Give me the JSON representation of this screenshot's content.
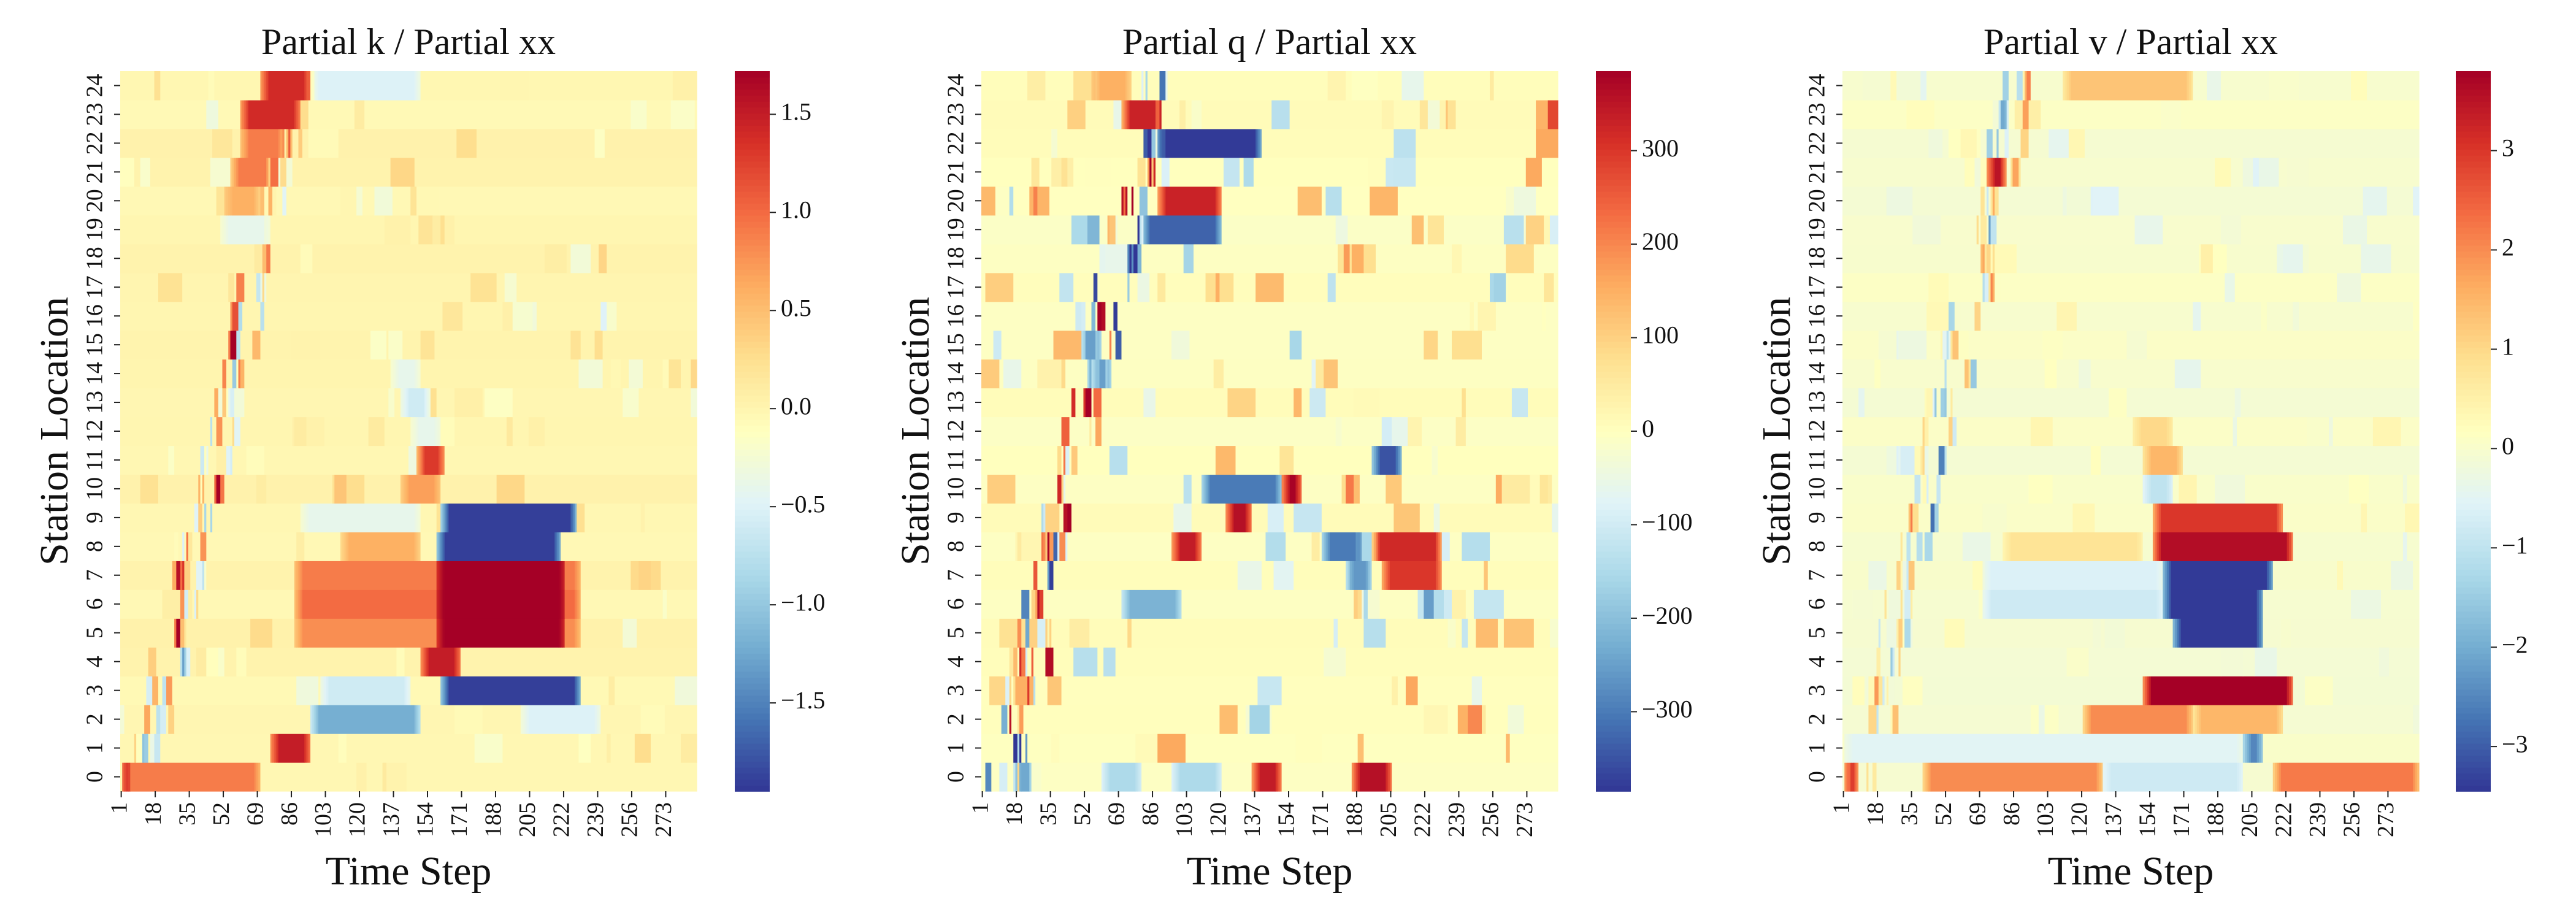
{
  "chart_data": [
    {
      "type": "heatmap",
      "title": "Partial k / Partial xx",
      "xlabel": "Time Step",
      "ylabel": "Station Location",
      "x_tick_labels": [
        "1",
        "18",
        "35",
        "52",
        "69",
        "86",
        "103",
        "120",
        "137",
        "154",
        "171",
        "188",
        "205",
        "222",
        "239",
        "256",
        "273"
      ],
      "y_tick_labels": [
        "0",
        "1",
        "2",
        "3",
        "4",
        "5",
        "6",
        "7",
        "8",
        "9",
        "10",
        "11",
        "12",
        "13",
        "14",
        "15",
        "16",
        "17",
        "18",
        "19",
        "20",
        "21",
        "22",
        "23",
        "24"
      ],
      "colorbar_ticks": [
        "-1.5",
        "-1.0",
        "-0.5",
        "0.0",
        "0.5",
        "1.0",
        "1.5"
      ],
      "colorbar_range": [
        -1.95,
        1.72
      ],
      "colormap": "RdYlBu_r",
      "n_time_steps": 288,
      "n_stations": 25,
      "features": [
        {
          "station": 6,
          "t0": 87,
          "t1": 230,
          "value": 1.0
        },
        {
          "station": 5,
          "t0": 87,
          "t1": 230,
          "value": 0.8
        },
        {
          "station": 7,
          "t0": 87,
          "t1": 230,
          "value": 0.9
        },
        {
          "station": 6,
          "t0": 158,
          "t1": 222,
          "value": 1.8
        },
        {
          "station": 5,
          "t0": 158,
          "t1": 222,
          "value": 1.8
        },
        {
          "station": 7,
          "t0": 158,
          "t1": 222,
          "value": 1.8
        },
        {
          "station": 8,
          "t0": 158,
          "t1": 220,
          "value": -1.9
        },
        {
          "station": 9,
          "t0": 160,
          "t1": 228,
          "value": -1.9
        },
        {
          "station": 8,
          "t0": 110,
          "t1": 150,
          "value": 0.6
        },
        {
          "station": 9,
          "t0": 90,
          "t1": 150,
          "value": -0.4
        },
        {
          "station": 3,
          "t0": 160,
          "t1": 230,
          "value": -1.9
        },
        {
          "station": 3,
          "t0": 100,
          "t1": 145,
          "value": -0.6
        },
        {
          "station": 4,
          "t0": 150,
          "t1": 170,
          "value": 1.5
        },
        {
          "station": 1,
          "t0": 75,
          "t1": 95,
          "value": 1.5
        },
        {
          "station": 2,
          "t0": 95,
          "t1": 150,
          "value": -1.2
        },
        {
          "station": 2,
          "t0": 200,
          "t1": 240,
          "value": -0.5
        },
        {
          "station": 0,
          "t0": 1,
          "t1": 70,
          "value": 0.9
        },
        {
          "station": 0,
          "t0": 1,
          "t1": 5,
          "value": 1.5
        },
        {
          "station": 10,
          "t0": 140,
          "t1": 160,
          "value": 0.7
        },
        {
          "station": 11,
          "t0": 148,
          "t1": 162,
          "value": 1.3
        },
        {
          "station": 12,
          "t0": 145,
          "t1": 160,
          "value": -0.4
        },
        {
          "station": 13,
          "t0": 140,
          "t1": 155,
          "value": -0.6
        },
        {
          "station": 14,
          "t0": 135,
          "t1": 150,
          "value": -0.4
        },
        {
          "station": 24,
          "t0": 70,
          "t1": 95,
          "value": 1.4
        },
        {
          "station": 24,
          "t0": 95,
          "t1": 150,
          "value": -0.5
        },
        {
          "station": 23,
          "t0": 60,
          "t1": 90,
          "value": 1.4
        },
        {
          "station": 22,
          "t0": 60,
          "t1": 82,
          "value": 0.9
        },
        {
          "station": 21,
          "t0": 55,
          "t1": 75,
          "value": 0.9
        },
        {
          "station": 20,
          "t0": 52,
          "t1": 70,
          "value": 0.6
        },
        {
          "station": 19,
          "t0": 50,
          "t1": 75,
          "value": -0.4
        }
      ]
    },
    {
      "type": "heatmap",
      "title": "Partial q / Partial xx",
      "xlabel": "Time Step",
      "ylabel": "Station Location",
      "x_tick_labels": [
        "1",
        "18",
        "35",
        "52",
        "69",
        "86",
        "103",
        "120",
        "137",
        "154",
        "171",
        "188",
        "205",
        "222",
        "239",
        "256",
        "273"
      ],
      "y_tick_labels": [
        "0",
        "1",
        "2",
        "3",
        "4",
        "5",
        "6",
        "7",
        "8",
        "9",
        "10",
        "11",
        "12",
        "13",
        "14",
        "15",
        "16",
        "17",
        "18",
        "19",
        "20",
        "21",
        "22",
        "23",
        "24"
      ],
      "colorbar_ticks": [
        "-300",
        "-200",
        "-100",
        "0",
        "100",
        "200",
        "300"
      ],
      "colorbar_range": [
        -385,
        385
      ],
      "colormap": "RdYlBu_r",
      "n_time_steps": 288,
      "n_stations": 25,
      "features": [
        {
          "station": 22,
          "t0": 88,
          "t1": 140,
          "value": -380
        },
        {
          "station": 20,
          "t0": 88,
          "t1": 120,
          "value": 330
        },
        {
          "station": 19,
          "t0": 80,
          "t1": 120,
          "value": -330
        },
        {
          "station": 10,
          "t0": 110,
          "t1": 150,
          "value": -300
        },
        {
          "station": 10,
          "t0": 150,
          "t1": 160,
          "value": 380
        },
        {
          "station": 9,
          "t0": 122,
          "t1": 135,
          "value": 360
        },
        {
          "station": 8,
          "t0": 95,
          "t1": 110,
          "value": 340
        },
        {
          "station": 8,
          "t0": 170,
          "t1": 190,
          "value": -300
        },
        {
          "station": 8,
          "t0": 195,
          "t1": 230,
          "value": 320
        },
        {
          "station": 7,
          "t0": 200,
          "t1": 230,
          "value": 300
        },
        {
          "station": 7,
          "t0": 182,
          "t1": 195,
          "value": -260
        },
        {
          "station": 11,
          "t0": 195,
          "t1": 210,
          "value": -350
        },
        {
          "station": 6,
          "t0": 70,
          "t1": 100,
          "value": -220
        },
        {
          "station": 0,
          "t0": 135,
          "t1": 150,
          "value": 340
        },
        {
          "station": 0,
          "t0": 185,
          "t1": 205,
          "value": 360
        },
        {
          "station": 0,
          "t0": 60,
          "t1": 80,
          "value": -150
        },
        {
          "station": 0,
          "t0": 95,
          "t1": 120,
          "value": -150
        },
        {
          "station": 23,
          "t0": 70,
          "t1": 90,
          "value": 330
        },
        {
          "station": 24,
          "t0": 55,
          "t1": 75,
          "value": 150
        },
        {
          "station": 14,
          "t0": 55,
          "t1": 65,
          "value": -250
        },
        {
          "station": 15,
          "t0": 50,
          "t1": 60,
          "value": -250
        }
      ]
    },
    {
      "type": "heatmap",
      "title": "Partial v / Partial xx",
      "xlabel": "Time Step",
      "ylabel": "Station Location",
      "x_tick_labels": [
        "1",
        "18",
        "35",
        "52",
        "69",
        "86",
        "103",
        "120",
        "137",
        "154",
        "171",
        "188",
        "205",
        "222",
        "239",
        "256",
        "273"
      ],
      "y_tick_labels": [
        "0",
        "1",
        "2",
        "3",
        "4",
        "5",
        "6",
        "7",
        "8",
        "9",
        "10",
        "11",
        "12",
        "13",
        "14",
        "15",
        "16",
        "17",
        "18",
        "19",
        "20",
        "21",
        "22",
        "23",
        "24"
      ],
      "colorbar_ticks": [
        "-3",
        "-2",
        "-1",
        "0",
        "1",
        "2",
        "3"
      ],
      "colorbar_range": [
        -3.45,
        3.8
      ],
      "colormap": "RdYlBu_r",
      "n_time_steps": 288,
      "n_stations": 25,
      "features": [
        {
          "station": 8,
          "t0": 155,
          "t1": 225,
          "value": 3.6
        },
        {
          "station": 9,
          "t0": 155,
          "t1": 220,
          "value": 3.0
        },
        {
          "station": 7,
          "t0": 160,
          "t1": 215,
          "value": -3.4
        },
        {
          "station": 6,
          "t0": 160,
          "t1": 210,
          "value": -3.4
        },
        {
          "station": 5,
          "t0": 165,
          "t1": 210,
          "value": -3.4
        },
        {
          "station": 6,
          "t0": 70,
          "t1": 160,
          "value": -0.8
        },
        {
          "station": 7,
          "t0": 70,
          "t1": 160,
          "value": -0.6
        },
        {
          "station": 8,
          "t0": 80,
          "t1": 150,
          "value": 0.8
        },
        {
          "station": 3,
          "t0": 150,
          "t1": 225,
          "value": 3.8
        },
        {
          "station": 2,
          "t0": 120,
          "t1": 175,
          "value": 2.0
        },
        {
          "station": 2,
          "t0": 175,
          "t1": 220,
          "value": 1.5
        },
        {
          "station": 0,
          "t0": 40,
          "t1": 130,
          "value": 2.0
        },
        {
          "station": 0,
          "t0": 215,
          "t1": 288,
          "value": 2.2
        },
        {
          "station": 0,
          "t0": 130,
          "t1": 200,
          "value": -0.8
        },
        {
          "station": 0,
          "t0": 1,
          "t1": 8,
          "value": 3.5
        },
        {
          "station": 1,
          "t0": 1,
          "t1": 200,
          "value": -0.5
        },
        {
          "station": 1,
          "t0": 200,
          "t1": 210,
          "value": -2.5
        },
        {
          "station": 21,
          "t0": 72,
          "t1": 82,
          "value": 3.5
        },
        {
          "station": 24,
          "t0": 110,
          "t1": 175,
          "value": 1.3
        },
        {
          "station": 11,
          "t0": 150,
          "t1": 170,
          "value": 1.5
        },
        {
          "station": 12,
          "t0": 145,
          "t1": 165,
          "value": 1.0
        },
        {
          "station": 10,
          "t0": 150,
          "t1": 165,
          "value": -1.0
        }
      ]
    }
  ]
}
